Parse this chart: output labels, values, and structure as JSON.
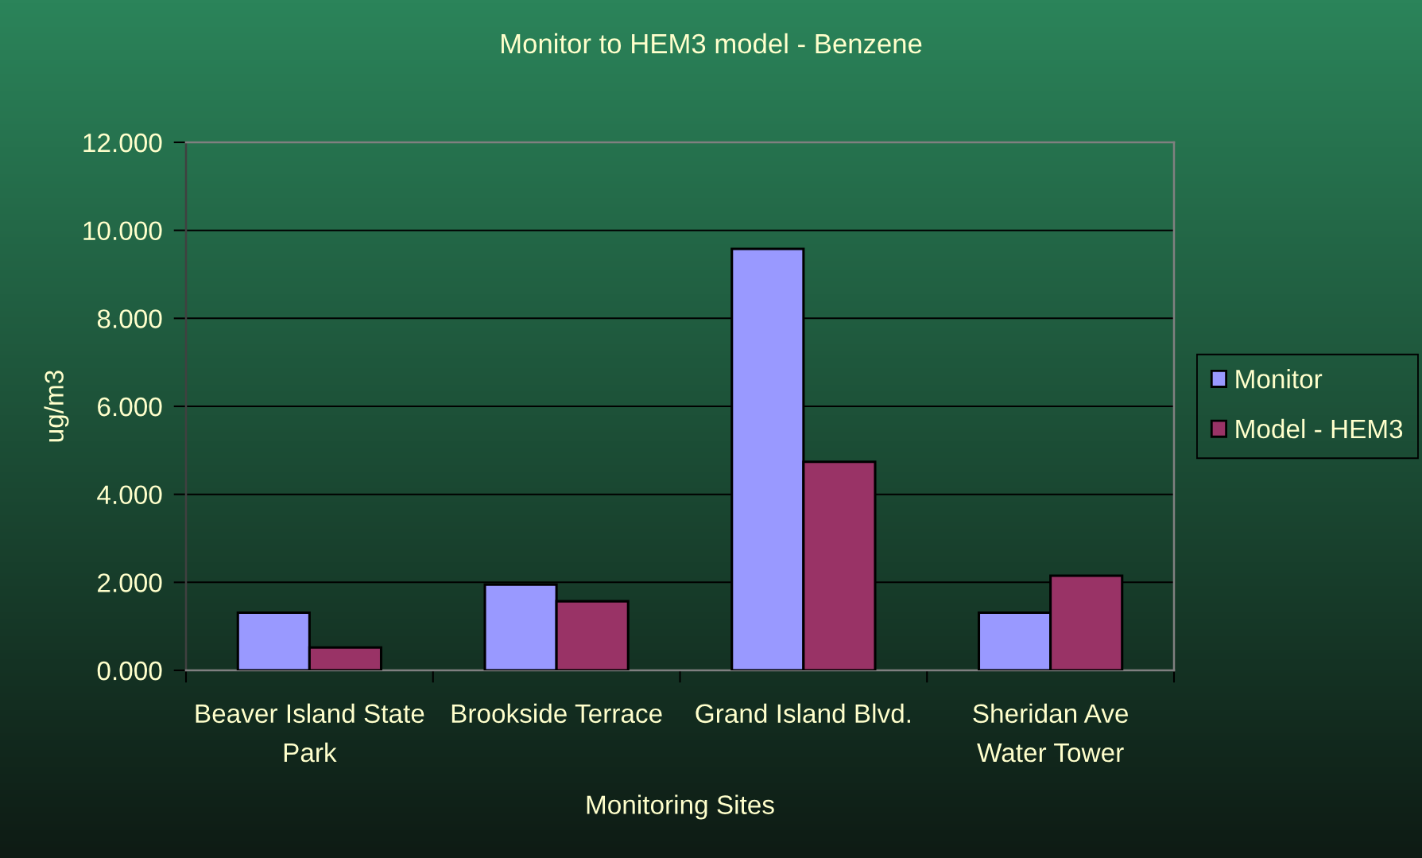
{
  "chart_data": {
    "type": "bar",
    "title": "Monitor to HEM3 model - Benzene",
    "xlabel": "Monitoring Sites",
    "ylabel": "ug/m3",
    "categories": [
      "Beaver Island State\nPark",
      "Brookside Terrace",
      "Grand Island Blvd.",
      "Sheridan Ave\nWater Tower"
    ],
    "series": [
      {
        "name": "Monitor",
        "color": "#9999ff",
        "values": [
          1.31,
          1.95,
          9.58,
          1.31
        ]
      },
      {
        "name": "Model - HEM3",
        "color": "#993366",
        "values": [
          0.52,
          1.57,
          4.74,
          2.15
        ]
      }
    ],
    "ylim": [
      0,
      12
    ],
    "yticks": [
      {
        "value": 0,
        "label": "0.000"
      },
      {
        "value": 2,
        "label": "2.000"
      },
      {
        "value": 4,
        "label": "4.000"
      },
      {
        "value": 6,
        "label": "6.000"
      },
      {
        "value": 8,
        "label": "8.000"
      },
      {
        "value": 10,
        "label": "10.000"
      },
      {
        "value": 12,
        "label": "12.000"
      }
    ],
    "grid": "y",
    "legend": "right"
  }
}
